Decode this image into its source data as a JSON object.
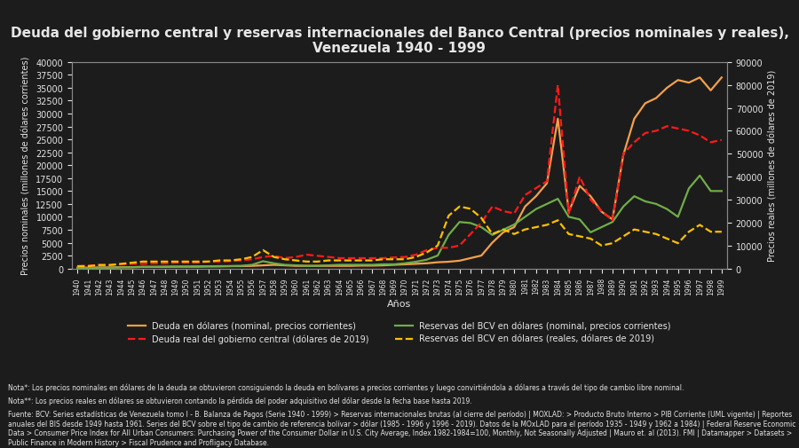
{
  "chart_data": {
    "type": "line",
    "title": "Deuda del gobierno central y reservas internacionales del Banco Central (precios nominales y reales), Venezuela 1940 - 1999",
    "x_label": "Años",
    "y_label": "Precios nominales (millones de dólares corrientes)",
    "y2_label": "Precios reales (millones de dólares de 2019)",
    "annotations": [
      "Nota*: Los precios nominales en dólares de la deuda se obtuvieron consiguiendo la deuda en bolívares a precios corrientes y luego convirtiéndola a dólares a través del tipo de cambio libre nominal.",
      "Nota**: Los precios reales en dólares se obtuvieron contando la pérdida del poder adquisitivo del dólar desde la fecha base hasta 2019.",
      "Fuente: BCV: Series estadísticas de Venezuela tomo I - B. Balanza de Pagos (Serie 1940 - 1999) > Reservas internacionales brutas (al cierre del período) | MOXLAD: > Producto Bruto Interno > PIB Corriente (UML vigente) | Reportes anuales del BIS desde 1949 hasta 1961. Series del BCV sobre el tipo de cambio de referencia bolívar > dólar (1985 - 1996 y 1996 - 2019). Datos de la MOxLAD para el período 1935 - 1949 y 1962 a 1984) | Federal Reserve Economic Data > Consumer Price Index for All Urban Consumers: Purchasing Power of the Consumer Dollar in U.S. City Average, Index 1982-1984=100, Monthly, Not Seasonally Adjusted | Mauro et. al (2013). FMI | Datamapper > Datasets > Public Finance in Modern History > Fiscal Prudence and Profligacy Database."
    ],
    "x": [
      1940,
      1941,
      1942,
      1943,
      1944,
      1945,
      1946,
      1947,
      1948,
      1949,
      1950,
      1951,
      1952,
      1953,
      1954,
      1955,
      1956,
      1957,
      1958,
      1959,
      1960,
      1961,
      1962,
      1963,
      1964,
      1965,
      1966,
      1967,
      1968,
      1969,
      1970,
      1971,
      1972,
      1973,
      1974,
      1975,
      1976,
      1977,
      1978,
      1979,
      1980,
      1981,
      1982,
      1983,
      1984,
      1985,
      1986,
      1987,
      1988,
      1989,
      1990,
      1991,
      1992,
      1993,
      1994,
      1995,
      1996,
      1997,
      1998,
      1999
    ],
    "xlim": [
      1939.5,
      1999.5
    ],
    "xticks": [
      1940,
      1941,
      1942,
      1943,
      1944,
      1945,
      1946,
      1947,
      1948,
      1949,
      1950,
      1951,
      1952,
      1953,
      1954,
      1955,
      1956,
      1957,
      1958,
      1959,
      1960,
      1961,
      1962,
      1963,
      1964,
      1965,
      1966,
      1967,
      1968,
      1969,
      1970,
      1971,
      1972,
      1973,
      1974,
      1975,
      1976,
      1977,
      1978,
      1979,
      1980,
      1981,
      1982,
      1983,
      1984,
      1985,
      1986,
      1987,
      1988,
      1989,
      1990,
      1991,
      1992,
      1993,
      1994,
      1995,
      1996,
      1997,
      1998,
      1999
    ],
    "ylim": [
      0,
      40000
    ],
    "yticks": [
      0,
      2500,
      5000,
      7500,
      10000,
      12500,
      15000,
      17500,
      20000,
      22500,
      25000,
      27500,
      30000,
      32500,
      35000,
      37500,
      40000
    ],
    "y2lim": [
      0,
      90000
    ],
    "y2ticks": [
      0,
      10000,
      20000,
      30000,
      40000,
      50000,
      60000,
      70000,
      80000,
      90000
    ],
    "grid": false,
    "legend": "lower center",
    "series": [
      {
        "name": "Deuda en dólares (nominal, precios corrientes)",
        "color": "#f4a04a",
        "line_style": "solid",
        "axis": "y",
        "values": [
          150,
          150,
          200,
          200,
          250,
          250,
          300,
          300,
          300,
          350,
          350,
          350,
          400,
          400,
          450,
          450,
          500,
          600,
          700,
          600,
          500,
          500,
          500,
          500,
          500,
          500,
          550,
          550,
          600,
          700,
          800,
          900,
          1000,
          1200,
          1300,
          1500,
          2000,
          2500,
          5000,
          7000,
          8000,
          12000,
          14000,
          16500,
          29000,
          11000,
          16000,
          14000,
          11000,
          9500,
          22000,
          29000,
          32000,
          33000,
          35000,
          36500,
          36000,
          37000,
          34500,
          37000
        ]
      },
      {
        "name": "Deuda real del gobierno central (dólares de 2019)",
        "color": "#ff1a1a",
        "line_style": "dashed",
        "axis": "y2",
        "values": [
          1000,
          1200,
          1500,
          1500,
          1800,
          2000,
          2000,
          2200,
          2200,
          2500,
          2500,
          2500,
          3000,
          3000,
          3200,
          3500,
          4000,
          5000,
          5500,
          4500,
          5000,
          6000,
          5500,
          5000,
          4500,
          4500,
          4500,
          4500,
          4500,
          4800,
          5000,
          6000,
          8000,
          9000,
          9000,
          10000,
          15000,
          20000,
          27000,
          25000,
          24000,
          32000,
          35000,
          38000,
          80000,
          24000,
          40000,
          30000,
          25000,
          21000,
          50000,
          55000,
          59000,
          60000,
          62000,
          61000,
          60000,
          58000,
          55000,
          56000
        ]
      },
      {
        "name": "Reservas del BCV en dólares (nominal, precios corrientes)",
        "color": "#70ad47",
        "line_style": "solid",
        "axis": "y",
        "values": [
          100,
          100,
          150,
          150,
          200,
          250,
          300,
          300,
          350,
          350,
          350,
          400,
          400,
          450,
          450,
          500,
          700,
          1400,
          1000,
          700,
          600,
          500,
          500,
          600,
          700,
          700,
          700,
          700,
          800,
          800,
          1000,
          1300,
          1700,
          2500,
          6500,
          9000,
          8800,
          8000,
          6500,
          7500,
          8500,
          10000,
          11500,
          12500,
          13500,
          10000,
          9500,
          7000,
          8000,
          9000,
          12000,
          14000,
          13000,
          12500,
          11500,
          10000,
          15500,
          18000,
          15000,
          15000
        ]
      },
      {
        "name": "Reservas del BCV en dólares (reales, dólares de 2019)",
        "color": "#ffc000",
        "line_style": "dashed",
        "axis": "y2",
        "values": [
          1000,
          1000,
          1500,
          1500,
          2000,
          2500,
          3000,
          3000,
          3000,
          3000,
          3000,
          3000,
          3000,
          3500,
          3500,
          4000,
          5000,
          8000,
          5000,
          4000,
          3500,
          3000,
          3000,
          3500,
          3500,
          3500,
          3500,
          3500,
          4000,
          4000,
          4000,
          5000,
          7000,
          10000,
          23000,
          27000,
          26000,
          22000,
          15000,
          17000,
          15000,
          17000,
          18000,
          19000,
          21000,
          15000,
          14000,
          13000,
          10000,
          11000,
          14000,
          17000,
          16000,
          15000,
          13000,
          11000,
          16000,
          19000,
          16000,
          16000
        ]
      }
    ]
  }
}
